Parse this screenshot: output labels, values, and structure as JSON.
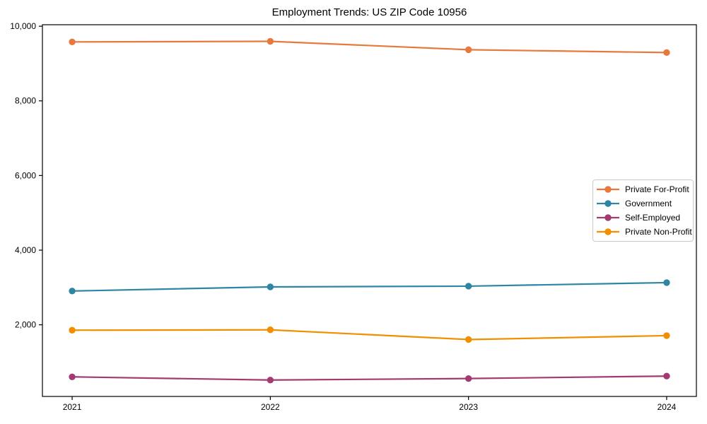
{
  "chart_data": {
    "type": "line",
    "title": "Employment Trends: US ZIP Code 10956",
    "xlabel": "",
    "ylabel": "",
    "x": [
      2021,
      2022,
      2023,
      2024
    ],
    "x_tick_labels": [
      "2021",
      "2022",
      "2023",
      "2024"
    ],
    "y_ticks": [
      2000,
      4000,
      6000,
      8000,
      10000
    ],
    "y_tick_labels": [
      "2,000",
      "4,000",
      "6,000",
      "8,000",
      "10,000"
    ],
    "xlim": [
      2020.85,
      2024.15
    ],
    "ylim": [
      80,
      10040
    ],
    "grid": false,
    "legend_position": "center right",
    "series": [
      {
        "name": "Private For-Profit",
        "color": "#E8793C",
        "values": [
          9580,
          9595,
          9370,
          9295
        ]
      },
      {
        "name": "Government",
        "color": "#2E86A3",
        "values": [
          2905,
          3015,
          3035,
          3130
        ]
      },
      {
        "name": "Self-Employed",
        "color": "#A23B72",
        "values": [
          605,
          520,
          560,
          625
        ]
      },
      {
        "name": "Private Non-Profit",
        "color": "#F18F01",
        "values": [
          1855,
          1865,
          1605,
          1710
        ]
      }
    ]
  }
}
